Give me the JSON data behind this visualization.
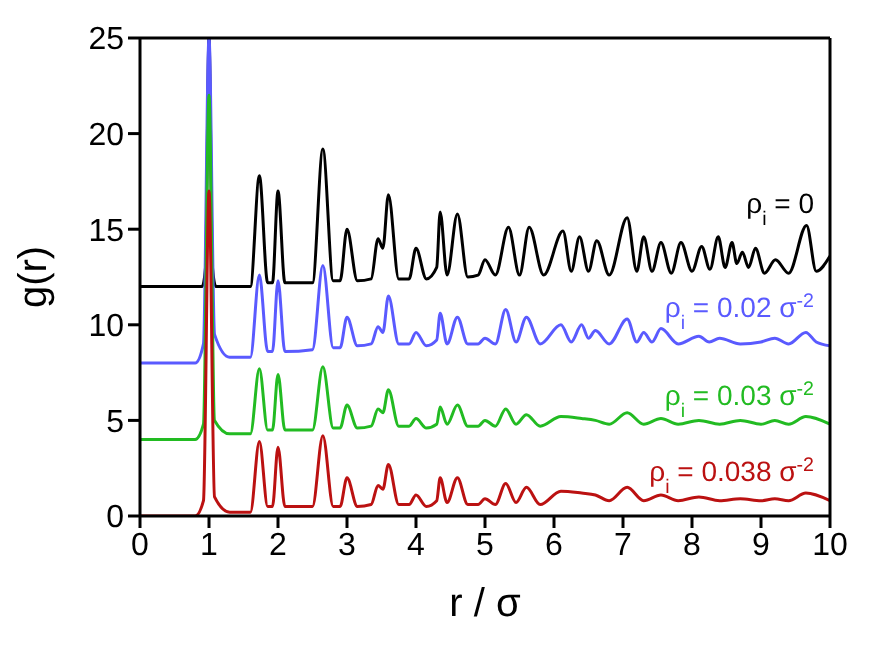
{
  "chart_data": {
    "type": "line",
    "xlabel": "r / σ",
    "ylabel": "g(r)",
    "xlim": [
      0,
      10
    ],
    "ylim": [
      0,
      25
    ],
    "xticks": [
      0,
      1,
      2,
      3,
      4,
      5,
      6,
      7,
      8,
      9,
      10
    ],
    "yticks": [
      0,
      5,
      10,
      15,
      20,
      25
    ],
    "marker": "none",
    "line_style": "solid",
    "series": [
      {
        "name": "ρ$_{i}$ = 0",
        "color": "#000000",
        "x": [
          0,
          0.9,
          0.95,
          1.0,
          1.05,
          1.1,
          1.6,
          1.73,
          1.85,
          1.92,
          2.0,
          2.1,
          2.5,
          2.65,
          2.8,
          2.9,
          3.0,
          3.15,
          3.35,
          3.45,
          3.52,
          3.6,
          3.75,
          3.9,
          4.0,
          4.15,
          4.3,
          4.35,
          4.45,
          4.6,
          4.75,
          4.9,
          5.0,
          5.15,
          5.34,
          5.5,
          5.64,
          5.85,
          6.13,
          6.25,
          6.37,
          6.5,
          6.62,
          6.8,
          7.06,
          7.2,
          7.3,
          7.42,
          7.55,
          7.7,
          7.84,
          8.0,
          8.14,
          8.26,
          8.38,
          8.48,
          8.58,
          8.65,
          8.73,
          8.82,
          8.92,
          9.05,
          9.21,
          9.4,
          9.66,
          9.8,
          10
        ],
        "values": [
          12,
          12,
          13,
          25,
          13,
          12,
          12,
          17.8,
          12.2,
          12.2,
          17,
          12.2,
          12.2,
          19.2,
          12.3,
          12.3,
          15,
          12.3,
          12.4,
          14.5,
          14,
          16.8,
          12.4,
          12.4,
          14,
          12.4,
          13,
          15.9,
          12.6,
          15.8,
          12.5,
          12.6,
          13.4,
          12.6,
          15.1,
          12.6,
          15.1,
          12.6,
          14.9,
          12.8,
          14.6,
          12.8,
          14.4,
          12.6,
          15.6,
          12.8,
          14.6,
          12.8,
          14.3,
          12.7,
          14.3,
          12.8,
          14.1,
          12.9,
          14.6,
          13,
          14.3,
          13.2,
          13.8,
          13,
          14,
          12.7,
          13.4,
          12.7,
          15.2,
          12.8,
          13.6
        ]
      },
      {
        "name": "ρ$_{i}$ = 0.02 σ$^{-2}$",
        "color": "#5a5aff",
        "x": [
          0,
          0.8,
          0.92,
          1.0,
          1.08,
          1.3,
          1.6,
          1.73,
          1.85,
          1.92,
          2.0,
          2.1,
          2.5,
          2.65,
          2.8,
          2.9,
          3.0,
          3.15,
          3.35,
          3.45,
          3.52,
          3.6,
          3.75,
          3.9,
          4.0,
          4.15,
          4.3,
          4.35,
          4.45,
          4.6,
          4.75,
          4.9,
          5.0,
          5.15,
          5.3,
          5.45,
          5.6,
          5.8,
          6.1,
          6.25,
          6.4,
          6.5,
          6.6,
          6.8,
          7.06,
          7.2,
          7.3,
          7.42,
          7.55,
          7.8,
          8.1,
          8.25,
          8.4,
          8.7,
          9.0,
          9.2,
          9.4,
          9.65,
          9.8,
          10
        ],
        "values": [
          8,
          8,
          9,
          25,
          9.5,
          8.3,
          8.3,
          12.6,
          8.6,
          8.6,
          12.3,
          8.6,
          8.7,
          13.1,
          8.8,
          8.8,
          10.4,
          8.9,
          9,
          9.9,
          9.6,
          11.5,
          9,
          9,
          9.6,
          8.9,
          9.2,
          10.6,
          9,
          10.4,
          9,
          9,
          9.3,
          9,
          10.8,
          9.1,
          10.4,
          9,
          10,
          9.1,
          10,
          9.3,
          9.7,
          9,
          10.3,
          9.1,
          9.6,
          9.1,
          9.8,
          9,
          9.4,
          9.1,
          9.3,
          9,
          9.1,
          9.3,
          9,
          9.6,
          9.1,
          8.9
        ]
      },
      {
        "name": "ρ$_{i}$ = 0.03 σ$^{-2}$",
        "color": "#22bb22",
        "x": [
          0,
          0.8,
          0.92,
          1.0,
          1.08,
          1.3,
          1.6,
          1.73,
          1.85,
          1.92,
          2.0,
          2.1,
          2.5,
          2.65,
          2.8,
          2.9,
          3.0,
          3.15,
          3.35,
          3.45,
          3.52,
          3.6,
          3.75,
          3.9,
          4.0,
          4.15,
          4.3,
          4.35,
          4.45,
          4.6,
          4.75,
          4.9,
          5.0,
          5.15,
          5.3,
          5.45,
          5.6,
          5.8,
          6.1,
          6.4,
          6.6,
          6.8,
          7.06,
          7.3,
          7.55,
          7.8,
          8.1,
          8.4,
          8.7,
          9.0,
          9.2,
          9.4,
          9.65,
          10
        ],
        "values": [
          4,
          4,
          4.8,
          22,
          5,
          4.3,
          4.3,
          7.7,
          4.5,
          4.5,
          7.4,
          4.5,
          4.5,
          7.8,
          4.6,
          4.6,
          5.8,
          4.6,
          4.7,
          5.6,
          5.4,
          6.6,
          4.7,
          4.7,
          5.1,
          4.6,
          4.8,
          5.7,
          4.8,
          5.8,
          4.7,
          4.7,
          5,
          4.7,
          5.6,
          4.8,
          5.3,
          4.7,
          5.2,
          5.1,
          5,
          4.8,
          5.4,
          4.8,
          5.1,
          4.8,
          5,
          4.8,
          5,
          4.8,
          5,
          4.8,
          5.2,
          4.8
        ]
      },
      {
        "name": "ρ$_{i}$ = 0.038 σ$^{-2}$",
        "color": "#bb1111",
        "x": [
          0,
          0.8,
          0.92,
          1.0,
          1.08,
          1.3,
          1.6,
          1.73,
          1.85,
          1.92,
          2.0,
          2.1,
          2.5,
          2.65,
          2.8,
          2.9,
          3.0,
          3.15,
          3.35,
          3.45,
          3.52,
          3.6,
          3.75,
          3.9,
          4.0,
          4.15,
          4.3,
          4.35,
          4.45,
          4.6,
          4.75,
          4.9,
          5.0,
          5.15,
          5.3,
          5.45,
          5.6,
          5.8,
          6.1,
          6.4,
          6.6,
          6.8,
          7.06,
          7.3,
          7.55,
          7.8,
          8.1,
          8.4,
          8.7,
          9.0,
          9.2,
          9.4,
          9.65,
          10
        ],
        "values": [
          0,
          0,
          0.8,
          17,
          1,
          0.2,
          0.2,
          3.9,
          0.5,
          0.5,
          3.6,
          0.5,
          0.5,
          4.2,
          0.5,
          0.5,
          2,
          0.5,
          0.6,
          1.6,
          1.4,
          2.7,
          0.6,
          0.6,
          1.1,
          0.5,
          0.8,
          2,
          0.7,
          2,
          0.6,
          0.6,
          0.9,
          0.6,
          1.7,
          0.7,
          1.5,
          0.6,
          1.3,
          1.2,
          1.1,
          0.8,
          1.5,
          0.8,
          1.1,
          0.8,
          1,
          0.8,
          0.9,
          0.8,
          0.9,
          0.8,
          1.2,
          0.8
        ]
      }
    ]
  }
}
